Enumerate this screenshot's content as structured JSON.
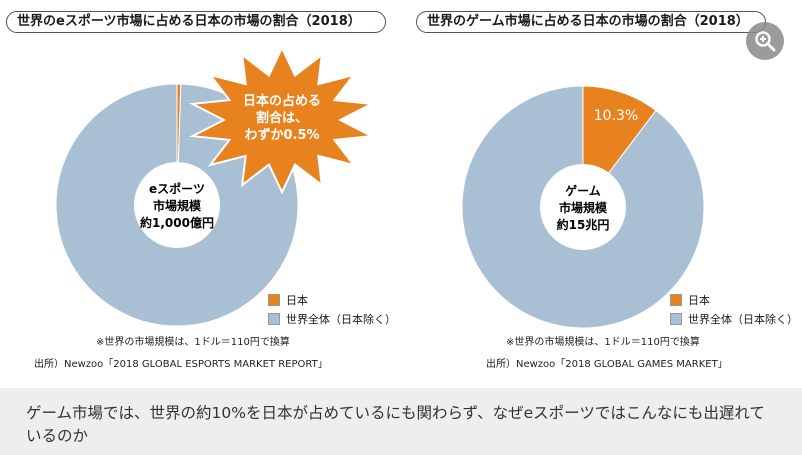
{
  "charts": [
    {
      "title": "世界のeスポーツ市場に占める日本の市場の割合（2018）",
      "center_label": [
        "eスポーツ",
        "市場規模",
        "約1,000億円"
      ],
      "callout": [
        "日本の占める",
        "割合は、",
        "わずか0.5%"
      ],
      "legend": [
        "日本",
        "世界全体（日本除く）"
      ],
      "note": "※世界の市場規模は、1ドル＝110円で換算",
      "source": "出所）Newzoo「2018 GLOBAL ESPORTS MARKET REPORT」"
    },
    {
      "title": "世界のゲーム市場に占める日本の市場の割合（2018）",
      "center_label": [
        "ゲーム",
        "市場規模",
        "約15兆円"
      ],
      "slice_label": "10.3%",
      "legend": [
        "日本",
        "世界全体（日本除く）"
      ],
      "note": "※世界の市場規模は、1ドル＝110円で換算",
      "source": "出所）Newzoo「2018 GLOBAL GAMES MARKET」"
    }
  ],
  "chart_data": [
    {
      "type": "pie",
      "title": "世界のeスポーツ市場に占める日本の市場の割合（2018）",
      "categories": [
        "日本",
        "世界全体（日本除く）"
      ],
      "values": [
        0.5,
        99.5
      ],
      "colors": [
        "#e8821e",
        "#a9c0d4"
      ],
      "legend": "bottom-right"
    },
    {
      "type": "pie",
      "title": "世界のゲーム市場に占める日本の市場の割合（2018）",
      "categories": [
        "日本",
        "世界全体（日本除く）"
      ],
      "values": [
        10.3,
        89.7
      ],
      "colors": [
        "#e8821e",
        "#a9c0d4"
      ],
      "legend": "bottom-right"
    }
  ],
  "zoom": {
    "icon": "zoom-in-icon"
  },
  "caption": "ゲーム市場では、世界の約10%を日本が占めているにも関わらず、なぜeスポーツではこんなにも出遅れているのか"
}
